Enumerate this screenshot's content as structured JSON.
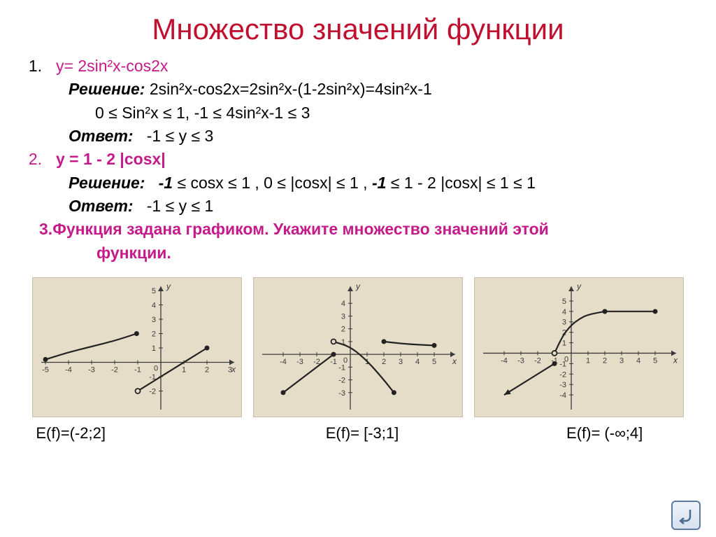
{
  "title": {
    "text": "Множество значений функции",
    "color": "#c01030",
    "fontsize": 42
  },
  "problems": {
    "p1": {
      "num": "1.",
      "fn": "y= 2sin²x-cos2x",
      "color": "#c41a8a",
      "sol_label": "Решение:",
      "sol_line1": "2sin²x-cos2x=2sin²x-(1-2sin²x)=4sin²x-1",
      "sol_line2": "0 ≤ Sin²x  ≤ 1,    -1 ≤ 4sin²x-1 ≤ 3",
      "ans_label": "Ответ:",
      "ans": "-1 ≤ y  ≤ 3"
    },
    "p2": {
      "num": "2.",
      "fn": "y = 1 - 2 |cosx|",
      "color": "#c41a8a",
      "sol_label": "Решение:",
      "sol_pre": "-1",
      "sol_mid": " ≤ cosx ≤ 1 , 0 ≤ |cosx| ≤ 1 , ",
      "sol_b2": "-1",
      "sol_post": " ≤ 1 - 2 |cosx| ≤ 1 ≤ 1",
      "ans_label": "Ответ:",
      "ans": "-1 ≤ y  ≤ 1"
    },
    "p3": {
      "num": "3.",
      "text1": "Функция задана графиком. Укажите множество значений этой",
      "text2": "функции.",
      "color": "#c41a8a"
    }
  },
  "graphs": {
    "bg": "#e6ddc9",
    "axis_color": "#3a3a3a",
    "curve_color": "#222222",
    "tick_fontsize": 11,
    "g1": {
      "xrange": [
        -5,
        3
      ],
      "yrange": [
        -3,
        5
      ],
      "xticks": [
        -5,
        -4,
        -3,
        -2,
        -1,
        1,
        2,
        3
      ],
      "yticks": [
        -2,
        -1,
        1,
        2,
        3,
        4,
        5
      ],
      "segments": [
        {
          "type": "curve",
          "pts": [
            [
              -5,
              0.2
            ],
            [
              -4,
              0.7
            ],
            [
              -3,
              1.1
            ],
            [
              -2,
              1.5
            ],
            [
              -1.05,
              2
            ]
          ],
          "endStart": "closed",
          "endEnd": "closed"
        },
        {
          "type": "line",
          "pts": [
            [
              -1,
              -2
            ],
            [
              2,
              1
            ]
          ],
          "endStart": "open",
          "endEnd": "closed"
        }
      ],
      "answer": "E(f)=(-2;2]"
    },
    "g2": {
      "xrange": [
        -5,
        6
      ],
      "yrange": [
        -4,
        5
      ],
      "xticks": [
        -4,
        -3,
        -2,
        -1,
        1,
        2,
        3,
        4,
        5
      ],
      "yticks": [
        -3,
        -2,
        -1,
        1,
        2,
        3,
        4
      ],
      "segments": [
        {
          "type": "line",
          "pts": [
            [
              -4,
              -3
            ],
            [
              -1,
              0
            ]
          ],
          "endStart": "closed",
          "endEnd": "closed"
        },
        {
          "type": "curve",
          "pts": [
            [
              -1,
              1
            ],
            [
              0,
              0.6
            ],
            [
              1,
              -0.5
            ],
            [
              2,
              -2
            ],
            [
              2.6,
              -3
            ]
          ],
          "endStart": "open",
          "endEnd": "closed"
        },
        {
          "type": "curve",
          "pts": [
            [
              2,
              1
            ],
            [
              3,
              0.85
            ],
            [
              4,
              0.75
            ],
            [
              5,
              0.7
            ]
          ],
          "endStart": "closed",
          "endEnd": "closed"
        }
      ],
      "answer": "E(f)= [-3;1]"
    },
    "g3": {
      "xrange": [
        -5,
        6
      ],
      "yrange": [
        -5,
        6
      ],
      "xticks": [
        -4,
        -3,
        -2,
        -1,
        1,
        2,
        3,
        4,
        5
      ],
      "yticks": [
        -4,
        -3,
        -2,
        -1,
        1,
        2,
        3,
        4,
        5
      ],
      "segments": [
        {
          "type": "line",
          "pts": [
            [
              -4,
              -4
            ],
            [
              -1,
              -1
            ]
          ],
          "endStart": "arrow",
          "endEnd": "closed"
        },
        {
          "type": "curve",
          "pts": [
            [
              -1,
              0
            ],
            [
              -0.5,
              1.7
            ],
            [
              0,
              2.7
            ],
            [
              0.5,
              3.3
            ],
            [
              1,
              3.7
            ],
            [
              2,
              4
            ]
          ],
          "endStart": "open",
          "endEnd": "closed"
        },
        {
          "type": "line",
          "pts": [
            [
              2,
              4
            ],
            [
              5,
              4
            ]
          ],
          "endStart": "closed",
          "endEnd": "closed"
        }
      ],
      "answer": "E(f)= (-∞;4]"
    }
  },
  "nav": {
    "icon": "return-icon",
    "stroke": "#4a6a90"
  }
}
